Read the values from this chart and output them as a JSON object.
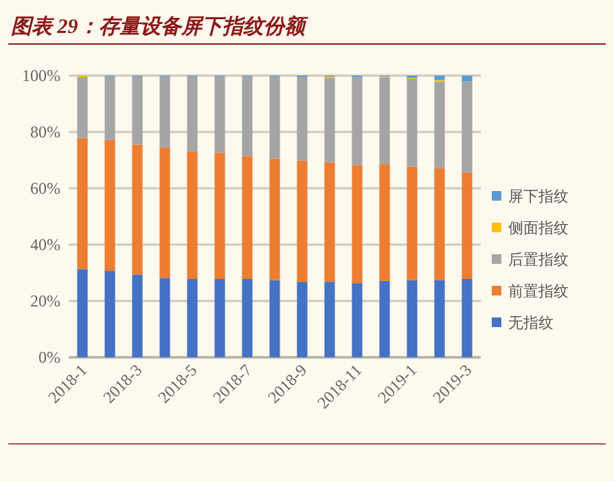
{
  "chart_data": {
    "type": "bar",
    "stacked": true,
    "title": "图表 29：存量设备屏下指纹份额",
    "categories": [
      "2018-1",
      null,
      "2018-3",
      null,
      "2018-5",
      null,
      "2018-7",
      null,
      "2018-9",
      null,
      "2018-11",
      null,
      "2019-1",
      null,
      "2019-3"
    ],
    "series": [
      {
        "name": "无指纹",
        "color": "#4472c4",
        "values": [
          31.3,
          30.7,
          29.4,
          28.2,
          27.8,
          27.8,
          27.8,
          27.4,
          26.8,
          26.8,
          26.3,
          27.1,
          27.4,
          27.4,
          27.8
        ]
      },
      {
        "name": "前置指纹",
        "color": "#ed7d31",
        "values": [
          46.6,
          46.4,
          46.1,
          46.2,
          45.3,
          44.8,
          43.6,
          43.2,
          43.0,
          42.4,
          41.9,
          41.4,
          40.3,
          39.8,
          37.9
        ]
      },
      {
        "name": "后置指纹",
        "color": "#a5a5a5",
        "values": [
          21.6,
          22.6,
          24.2,
          25.3,
          26.6,
          27.1,
          28.3,
          29.1,
          29.7,
          30.0,
          31.2,
          30.9,
          31.1,
          30.7,
          32.2
        ]
      },
      {
        "name": "侧面指纹",
        "color": "#ffc000",
        "values": [
          0.5,
          0.0,
          0.0,
          0.0,
          null,
          null,
          null,
          null,
          0.0,
          0.5,
          0.0,
          0.3,
          0.3,
          0.5,
          0.0
        ]
      },
      {
        "name": "屏下指纹",
        "color": "#5b9bd5",
        "values": [
          0.0,
          0.3,
          0.3,
          0.3,
          0.3,
          0.3,
          0.3,
          0.3,
          0.5,
          0.3,
          0.6,
          0.3,
          0.9,
          1.6,
          2.1
        ]
      }
    ],
    "ylim": [
      0,
      100
    ],
    "yticks": [
      {
        "value": 0,
        "label": "0%"
      },
      {
        "value": 20,
        "label": "20%"
      },
      {
        "value": 40,
        "label": "40%"
      },
      {
        "value": 60,
        "label": "60%"
      },
      {
        "value": 80,
        "label": "80%"
      },
      {
        "value": 100,
        "label": "100%"
      }
    ],
    "grid": "y",
    "legend": "right"
  }
}
